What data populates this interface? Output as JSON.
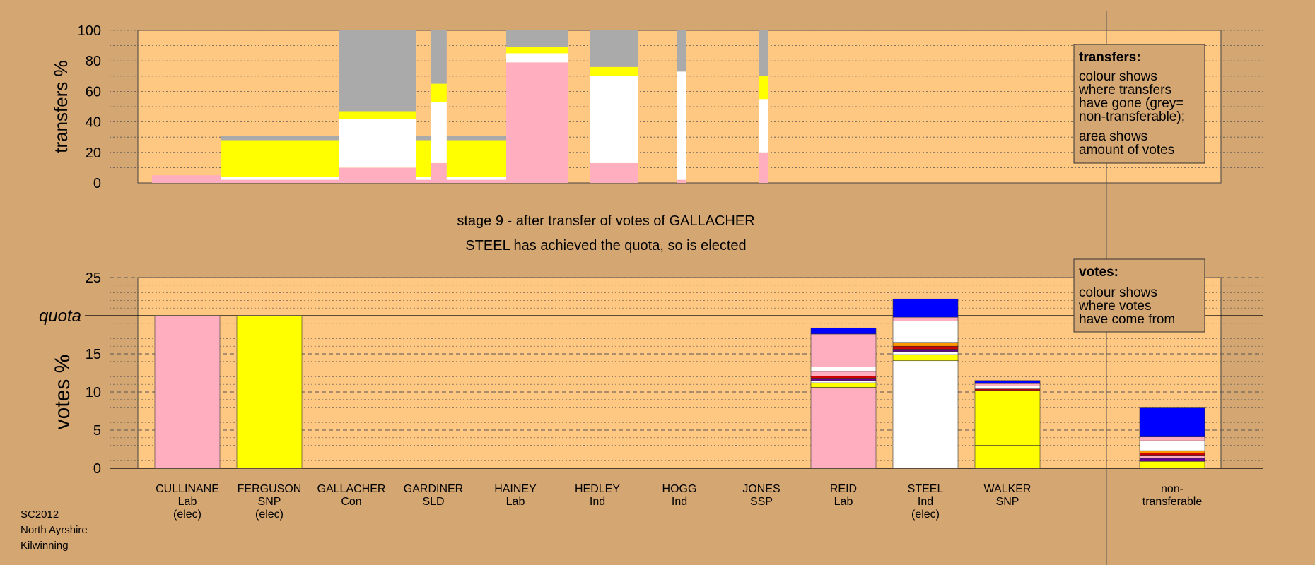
{
  "colors": {
    "background": "#d4a672",
    "plot_area": "#ffc882",
    "Lab": "#ffaec0",
    "SNP": "#ffff00",
    "Ind": "#ffffff",
    "Con": "#0000ff",
    "SLD": "#ff9900",
    "SSP": "#cc0000",
    "other": "#660099",
    "nontransferable": "#aaaaaa"
  },
  "heading": {
    "line1": "stage 9 - after transfer of votes of GALLACHER",
    "line2": "STEEL has achieved the quota, so is elected"
  },
  "footer": {
    "line1": "SC2012",
    "line2": "North Ayrshire",
    "line3": "Kilwinning"
  },
  "chart_data": [
    {
      "type": "bar",
      "title": "",
      "ylabel": "transfers %",
      "ylim": [
        0,
        100
      ],
      "yticks": [
        "0",
        "20",
        "40",
        "60",
        "80",
        "100"
      ],
      "legend": {
        "placement": "top-right",
        "title": "transfers:",
        "lines1": [
          "colour shows",
          "where transfers",
          "have gone (grey=",
          "non-transferable);"
        ],
        "lines2": [
          "area shows",
          "amount of votes"
        ]
      },
      "bars": [
        {
          "candidate": "CULLINANE",
          "width_share": 1.0,
          "segments": [
            {
              "party": "Lab",
              "from": 0,
              "to": 5
            }
          ]
        },
        {
          "candidate": "FERGUSON",
          "width_share": 1.4,
          "segments": [
            {
              "party": "Lab",
              "from": 0,
              "to": 2
            },
            {
              "party": "Ind",
              "from": 2,
              "to": 4
            },
            {
              "party": "SNP",
              "from": 4,
              "to": 28
            },
            {
              "party": "nontransferable",
              "from": 28,
              "to": 31
            }
          ]
        },
        {
          "candidate": "GALLACHER",
          "width_share": 0.35,
          "segments": [
            {
              "party": "Lab",
              "from": 0,
              "to": 10
            },
            {
              "party": "Ind",
              "from": 10,
              "to": 42
            },
            {
              "party": "SNP",
              "from": 42,
              "to": 47
            },
            {
              "party": "nontransferable",
              "from": 47,
              "to": 100
            }
          ]
        },
        {
          "candidate": "GARDINER",
          "width_share": 0.07,
          "segments": [
            {
              "party": "Lab",
              "from": 0,
              "to": 13
            },
            {
              "party": "Ind",
              "from": 13,
              "to": 53
            },
            {
              "party": "SNP",
              "from": 53,
              "to": 65
            },
            {
              "party": "nontransferable",
              "from": 65,
              "to": 100
            }
          ]
        },
        {
          "candidate": "HAINEY",
          "width_share": 0.28,
          "segments": [
            {
              "party": "Lab",
              "from": 0,
              "to": 79
            },
            {
              "party": "Ind",
              "from": 79,
              "to": 85
            },
            {
              "party": "SNP",
              "from": 85,
              "to": 89
            },
            {
              "party": "nontransferable",
              "from": 89,
              "to": 100
            }
          ]
        },
        {
          "candidate": "HEDLEY",
          "width_share": 0.22,
          "segments": [
            {
              "party": "Lab",
              "from": 0,
              "to": 13
            },
            {
              "party": "Ind",
              "from": 13,
              "to": 70
            },
            {
              "party": "SNP",
              "from": 70,
              "to": 76
            },
            {
              "party": "nontransferable",
              "from": 76,
              "to": 100
            }
          ]
        },
        {
          "candidate": "HOGG",
          "width_share": 0.04,
          "segments": [
            {
              "party": "Lab",
              "from": 0,
              "to": 2
            },
            {
              "party": "Ind",
              "from": 2,
              "to": 73
            },
            {
              "party": "nontransferable",
              "from": 73,
              "to": 100
            }
          ]
        },
        {
          "candidate": "JONES",
          "width_share": 0.04,
          "segments": [
            {
              "party": "Lab",
              "from": 0,
              "to": 20
            },
            {
              "party": "Ind",
              "from": 20,
              "to": 55
            },
            {
              "party": "SNP",
              "from": 55,
              "to": 70
            },
            {
              "party": "nontransferable",
              "from": 70,
              "to": 100
            }
          ]
        }
      ]
    },
    {
      "type": "bar",
      "title": "",
      "ylabel": "votes %",
      "ylim": [
        0,
        25
      ],
      "yticks": [
        "0",
        "5",
        "10",
        "15",
        "20",
        "25"
      ],
      "quota": 20,
      "quota_label": "quota",
      "legend": {
        "placement": "top-right",
        "title": "votes:",
        "lines1": [
          "colour shows",
          "where votes",
          "have come from"
        ]
      },
      "categories": [
        {
          "name": "CULLINANE",
          "party": "Lab",
          "status": "(elec)"
        },
        {
          "name": "FERGUSON",
          "party": "SNP",
          "status": "(elec)"
        },
        {
          "name": "GALLACHER",
          "party": "Con",
          "status": ""
        },
        {
          "name": "GARDINER",
          "party": "SLD",
          "status": ""
        },
        {
          "name": "HAINEY",
          "party": "Lab",
          "status": ""
        },
        {
          "name": "HEDLEY",
          "party": "Ind",
          "status": ""
        },
        {
          "name": "HOGG",
          "party": "Ind",
          "status": ""
        },
        {
          "name": "JONES",
          "party": "SSP",
          "status": ""
        },
        {
          "name": "REID",
          "party": "Lab",
          "status": ""
        },
        {
          "name": "STEEL",
          "party": "Ind",
          "status": "(elec)"
        },
        {
          "name": "WALKER",
          "party": "SNP",
          "status": ""
        }
      ],
      "nontransferable_label": [
        "non-",
        "transferable"
      ],
      "stacks": [
        [
          {
            "party": "Lab",
            "from": 0,
            "to": 20
          }
        ],
        [
          {
            "party": "SNP",
            "from": 0,
            "to": 20
          }
        ],
        [],
        [],
        [],
        [],
        [],
        [],
        [
          {
            "party": "Lab",
            "from": 0,
            "to": 10.6
          },
          {
            "party": "SNP",
            "from": 10.6,
            "to": 11.2
          },
          {
            "party": "Ind",
            "from": 11.2,
            "to": 11.5
          },
          {
            "party": "other",
            "from": 11.5,
            "to": 11.8
          },
          {
            "party": "SSP",
            "from": 11.8,
            "to": 12.1
          },
          {
            "party": "Lab",
            "from": 12.1,
            "to": 12.7
          },
          {
            "party": "Ind",
            "from": 12.7,
            "to": 13.3
          },
          {
            "party": "Lab",
            "from": 13.3,
            "to": 17.6
          },
          {
            "party": "Con",
            "from": 17.6,
            "to": 18.4
          }
        ],
        [
          {
            "party": "Ind",
            "from": 0,
            "to": 14.1
          },
          {
            "party": "SNP",
            "from": 14.1,
            "to": 14.9
          },
          {
            "party": "Ind",
            "from": 14.9,
            "to": 15.3
          },
          {
            "party": "other",
            "from": 15.3,
            "to": 15.6
          },
          {
            "party": "SSP",
            "from": 15.6,
            "to": 16
          },
          {
            "party": "SLD",
            "from": 16,
            "to": 16.5
          },
          {
            "party": "Ind",
            "from": 16.5,
            "to": 19.3
          },
          {
            "party": "Lab",
            "from": 19.3,
            "to": 19.8
          },
          {
            "party": "Con",
            "from": 19.8,
            "to": 22.2
          }
        ],
        [
          {
            "party": "SNP",
            "from": 0,
            "to": 3
          },
          {
            "party": "SNP",
            "from": 3,
            "to": 10.2
          },
          {
            "party": "SSP",
            "from": 10.2,
            "to": 10.4
          },
          {
            "party": "Ind",
            "from": 10.4,
            "to": 10.8
          },
          {
            "party": "Lab",
            "from": 10.8,
            "to": 11.1
          },
          {
            "party": "Con",
            "from": 11.1,
            "to": 11.5
          }
        ]
      ],
      "nontransferable_stack": [
        {
          "party": "SNP",
          "from": 0,
          "to": 0.9
        },
        {
          "party": "other",
          "from": 0.9,
          "to": 1.3
        },
        {
          "party": "Lab",
          "from": 1.3,
          "to": 1.7
        },
        {
          "party": "SSP",
          "from": 1.7,
          "to": 2.0
        },
        {
          "party": "SLD",
          "from": 2.0,
          "to": 2.3
        },
        {
          "party": "Ind",
          "from": 2.3,
          "to": 3.6
        },
        {
          "party": "Lab",
          "from": 3.6,
          "to": 4.1
        },
        {
          "party": "Con",
          "from": 4.1,
          "to": 8.0
        }
      ]
    }
  ]
}
